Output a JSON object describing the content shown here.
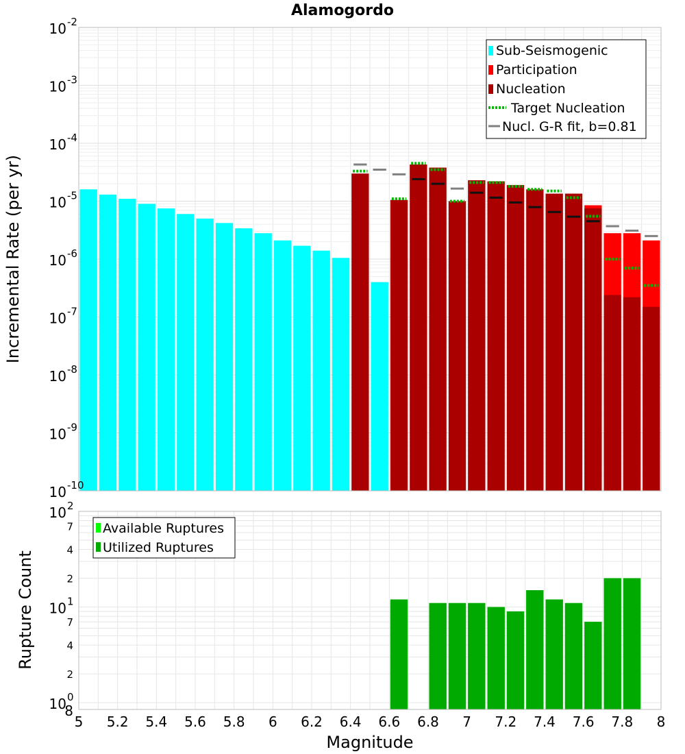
{
  "chart_data": [
    {
      "type": "bar",
      "title": "Alamogordo",
      "xlabel": "",
      "ylabel": "Incremental Rate (per yr)",
      "xlim": [
        5,
        8
      ],
      "ylim": [
        1e-10,
        0.01
      ],
      "yscale": "log",
      "grid": true,
      "legend_position": "top-right",
      "x_ticks": [
        "5",
        "5.2",
        "5.4",
        "5.6",
        "5.8",
        "6",
        "6.2",
        "6.4",
        "6.6",
        "6.8",
        "7",
        "7.2",
        "7.4",
        "7.6",
        "7.8",
        "8"
      ],
      "y_tick_exponents": [
        "-10",
        "-9",
        "-8",
        "-7",
        "-6",
        "-5",
        "-4",
        "-3",
        "-2"
      ],
      "y_tick_base": "10",
      "bin_centers": [
        5.05,
        5.15,
        5.25,
        5.35,
        5.45,
        5.55,
        5.65,
        5.75,
        5.85,
        5.95,
        6.05,
        6.15,
        6.25,
        6.35,
        6.45,
        6.55,
        6.65,
        6.75,
        6.85,
        6.95,
        7.05,
        7.15,
        7.25,
        7.35,
        7.45,
        7.55,
        7.65,
        7.75,
        7.85,
        7.95
      ],
      "series": [
        {
          "name": "Sub-Seismogenic",
          "color": "#00ffff",
          "style": "bar",
          "values": [
            1.6e-05,
            1.3e-05,
            1.1e-05,
            9e-06,
            7.5e-06,
            6e-06,
            5e-06,
            4.2e-06,
            3.4e-06,
            2.8e-06,
            2.1e-06,
            1.7e-06,
            1.4e-06,
            1.05e-06,
            null,
            4e-07,
            null,
            null,
            null,
            null,
            null,
            null,
            null,
            null,
            null,
            null,
            null,
            null,
            null,
            null
          ]
        },
        {
          "name": "Participation",
          "color": "#ff0000",
          "style": "bar",
          "values": [
            null,
            null,
            null,
            null,
            null,
            null,
            null,
            null,
            null,
            null,
            null,
            null,
            null,
            null,
            null,
            null,
            null,
            null,
            null,
            null,
            null,
            null,
            null,
            null,
            null,
            null,
            8.5e-06,
            2.8e-06,
            2.8e-06,
            2.1e-06
          ]
        },
        {
          "name": "Nucleation",
          "color": "#aa0000",
          "style": "bar",
          "values": [
            null,
            null,
            null,
            null,
            null,
            null,
            null,
            null,
            null,
            null,
            null,
            null,
            null,
            null,
            3e-05,
            null,
            1.05e-05,
            4.3e-05,
            3.8e-05,
            1e-05,
            2.3e-05,
            2.2e-05,
            1.9e-05,
            1.6e-05,
            1.35e-05,
            1.35e-05,
            7.5e-06,
            2.4e-07,
            2.2e-07,
            1.5e-07
          ]
        },
        {
          "name": "Target Nucleation",
          "color": "#00bb00",
          "style": "dotted",
          "values": [
            null,
            null,
            null,
            null,
            null,
            null,
            null,
            null,
            null,
            null,
            null,
            null,
            null,
            null,
            3.3e-05,
            null,
            1.1e-05,
            4.5e-05,
            3.5e-05,
            1e-05,
            2.1e-05,
            2.1e-05,
            1.8e-05,
            1.6e-05,
            1.5e-05,
            1.15e-05,
            5.5e-06,
            1e-06,
            7e-07,
            3.5e-07
          ]
        },
        {
          "name": "Nucl. G-R fit, b=0.81",
          "color": "#808080",
          "style": "dash",
          "values": [
            null,
            null,
            null,
            null,
            null,
            null,
            null,
            null,
            null,
            null,
            null,
            null,
            null,
            null,
            4.3e-05,
            3.5e-05,
            2.9e-05,
            2.4e-05,
            2e-05,
            1.65e-05,
            1.4e-05,
            1.15e-05,
            9.5e-06,
            7.9e-06,
            6.5e-06,
            5.4e-06,
            4.5e-06,
            3.7e-06,
            3.1e-06,
            2.5e-06
          ]
        }
      ]
    },
    {
      "type": "bar",
      "title": "",
      "xlabel": "Magnitude",
      "ylabel": "Rupture Count",
      "xlim": [
        5,
        8
      ],
      "ylim": [
        0.85,
        100
      ],
      "yscale": "log",
      "grid": true,
      "legend_position": "top-left",
      "x_ticks": [
        "5",
        "5.2",
        "5.4",
        "5.6",
        "5.8",
        "6",
        "6.2",
        "6.4",
        "6.6",
        "6.8",
        "7",
        "7.2",
        "7.4",
        "7.6",
        "7.8",
        "8"
      ],
      "y_tick_labels": {
        "major": [
          "10",
          "10",
          "10"
        ],
        "major_exponents": [
          "0",
          "1",
          "2"
        ],
        "minor": [
          "2",
          "4",
          "7",
          "2",
          "4",
          "7"
        ],
        "corner": "8"
      },
      "bin_centers": [
        6.65,
        6.85,
        6.95,
        7.05,
        7.15,
        7.25,
        7.35,
        7.45,
        7.55,
        7.65,
        7.75,
        7.85
      ],
      "series": [
        {
          "name": "Available Ruptures",
          "color": "#00ff00",
          "style": "bar",
          "values": [
            12,
            11,
            11,
            11,
            10,
            9,
            15,
            12,
            11,
            7,
            20,
            20
          ]
        },
        {
          "name": "Utilized Ruptures",
          "color": "#00aa00",
          "style": "bar",
          "values": [
            12,
            11,
            11,
            11,
            10,
            9,
            15,
            12,
            11,
            7,
            20,
            20
          ]
        }
      ]
    }
  ]
}
